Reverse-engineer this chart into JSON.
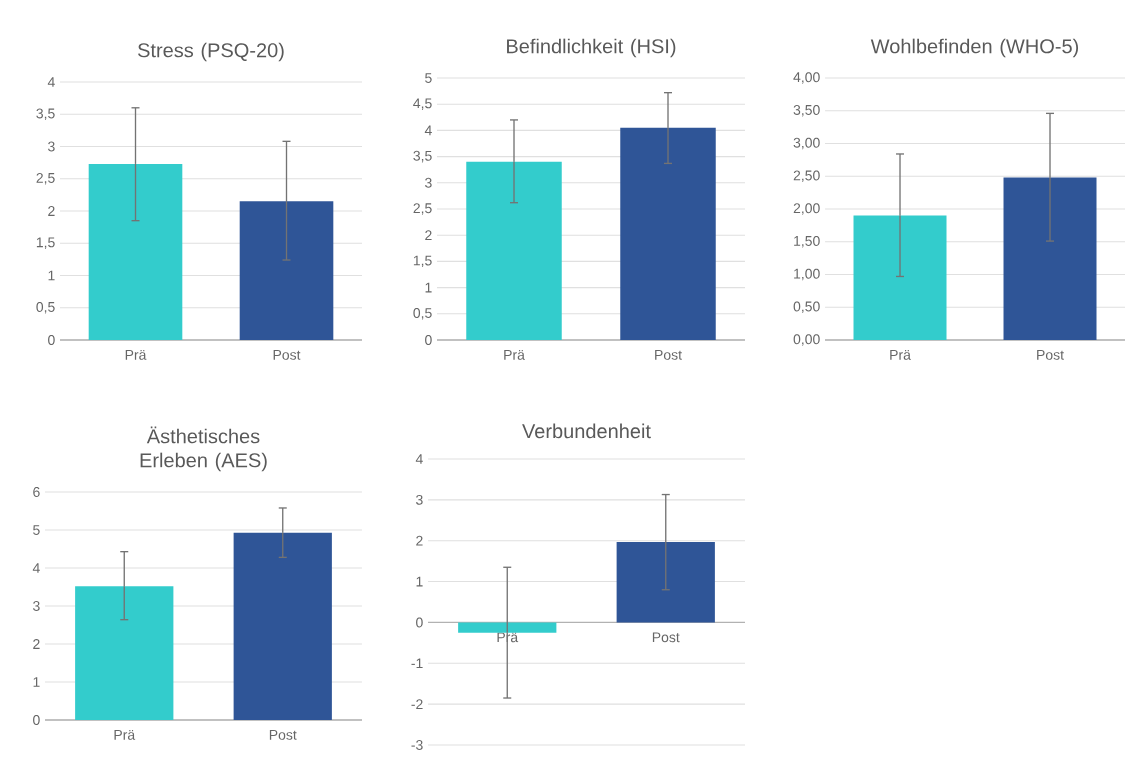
{
  "chart_data": [
    {
      "type": "bar",
      "title": "Stress (PSQ-20)",
      "categories": [
        "Prä",
        "Post"
      ],
      "values": [
        2.73,
        2.15
      ],
      "errors": [
        [
          1.85,
          3.6
        ],
        [
          1.24,
          3.08
        ]
      ],
      "colors": [
        "#33cccc",
        "#2f5597"
      ],
      "ylim": [
        0,
        4
      ],
      "yticks": [
        0,
        {
          "value": 0.5,
          "label": "0,5"
        },
        1,
        {
          "value": 1.5,
          "label": "1,5"
        },
        2,
        {
          "value": 2.5,
          "label": "2,5"
        },
        3,
        {
          "value": 3.5,
          "label": "3,5"
        },
        4
      ],
      "grid": "y"
    },
    {
      "type": "bar",
      "title": "Befindlichkeit (HSI)",
      "categories": [
        "Prä",
        "Post"
      ],
      "values": [
        3.4,
        4.05
      ],
      "errors": [
        [
          2.62,
          4.2
        ],
        [
          3.37,
          4.72
        ]
      ],
      "colors": [
        "#33cccc",
        "#2f5597"
      ],
      "ylim": [
        0,
        5
      ],
      "yticks": [
        0,
        {
          "value": 0.5,
          "label": "0,5"
        },
        1,
        {
          "value": 1.5,
          "label": "1,5"
        },
        2,
        {
          "value": 2.5,
          "label": "2,5"
        },
        3,
        {
          "value": 3.5,
          "label": "3,5"
        },
        4,
        {
          "value": 4.5,
          "label": "4,5"
        },
        5
      ],
      "grid": "y"
    },
    {
      "type": "bar",
      "title": "Wohlbefinden (WHO-5)",
      "categories": [
        "Prä",
        "Post"
      ],
      "values": [
        1.9,
        2.48
      ],
      "errors": [
        [
          0.97,
          2.84
        ],
        [
          1.51,
          3.46
        ]
      ],
      "colors": [
        "#33cccc",
        "#2f5597"
      ],
      "ylim": [
        0,
        4
      ],
      "yticks": [
        {
          "value": 0,
          "label": "0,00"
        },
        {
          "value": 0.5,
          "label": "0,50"
        },
        {
          "value": 1,
          "label": "1,00"
        },
        {
          "value": 1.5,
          "label": "1,50"
        },
        {
          "value": 2,
          "label": "2,00"
        },
        {
          "value": 2.5,
          "label": "2,50"
        },
        {
          "value": 3,
          "label": "3,00"
        },
        {
          "value": 3.5,
          "label": "3,50"
        },
        {
          "value": 4,
          "label": "4,00"
        }
      ],
      "grid": "y"
    },
    {
      "type": "bar",
      "title": "Ästhetisches Erleben (AES)",
      "categories": [
        "Prä",
        "Post"
      ],
      "values": [
        3.52,
        4.93
      ],
      "errors": [
        [
          2.64,
          4.43
        ],
        [
          4.28,
          5.58
        ]
      ],
      "colors": [
        "#33cccc",
        "#2f5597"
      ],
      "ylim": [
        0,
        6
      ],
      "yticks": [
        0,
        1,
        2,
        3,
        4,
        5,
        6
      ],
      "grid": "y"
    },
    {
      "type": "bar",
      "title": "Verbundenheit",
      "categories": [
        "Prä",
        "Post"
      ],
      "values": [
        -0.25,
        1.97
      ],
      "errors": [
        [
          -1.85,
          1.35
        ],
        [
          0.8,
          3.13
        ]
      ],
      "colors": [
        "#33cccc",
        "#2f5597"
      ],
      "ylim": [
        -3,
        4
      ],
      "yticks": [
        -3,
        -2,
        -1,
        0,
        1,
        2,
        3,
        4
      ],
      "grid": "y"
    }
  ]
}
